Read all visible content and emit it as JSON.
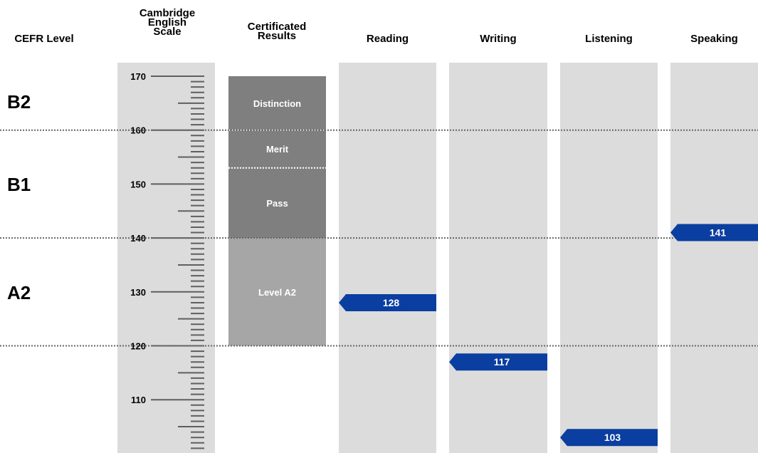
{
  "headers": {
    "cefr": "CEFR Level",
    "scale": "Cambridge\nEnglish\nScale",
    "results": "Certificated\nResults",
    "reading": "Reading",
    "writing": "Writing",
    "listening": "Listening",
    "speaking": "Speaking"
  },
  "cefr_levels": [
    "B2",
    "B1",
    "A2"
  ],
  "colors": {
    "column_bg": "#dcdcdc",
    "band_dark": "#7f7f7f",
    "band_light": "#a6a6a6",
    "marker": "#0a3ea0",
    "scale_line": "#5f5f5f",
    "divider": "#666666"
  },
  "chart_data": {
    "type": "bar",
    "scale": {
      "min": 100,
      "max": 170,
      "labeled_ticks": [
        170,
        160,
        150,
        140,
        130,
        120,
        110
      ]
    },
    "cefr_boundaries": [
      160,
      140,
      120
    ],
    "cefr_bands": [
      {
        "level": "B2",
        "from": 160,
        "to": 170
      },
      {
        "level": "B1",
        "from": 140,
        "to": 160
      },
      {
        "level": "A2",
        "from": 120,
        "to": 140
      }
    ],
    "certificated_results": [
      {
        "label": "Distinction",
        "from": 160,
        "to": 170
      },
      {
        "label": "Merit",
        "from": 153,
        "to": 160
      },
      {
        "label": "Pass",
        "from": 140,
        "to": 153
      },
      {
        "label": "Level A2",
        "from": 120,
        "to": 140
      }
    ],
    "categories": [
      "Reading",
      "Writing",
      "Listening",
      "Speaking"
    ],
    "values": [
      128,
      117,
      103,
      141
    ]
  }
}
